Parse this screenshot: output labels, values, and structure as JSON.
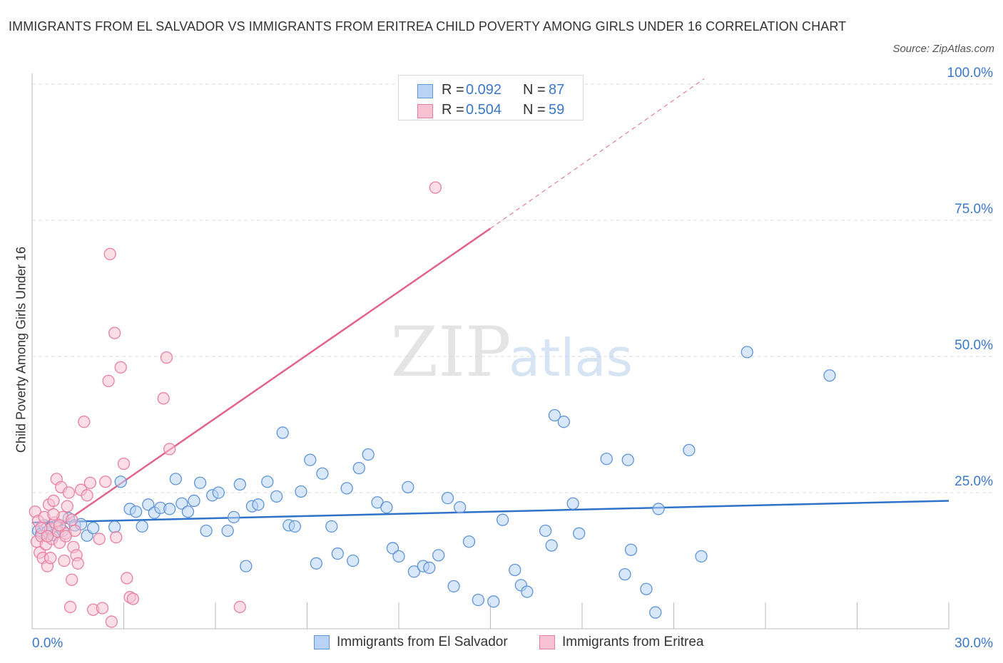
{
  "title": "IMMIGRANTS FROM EL SALVADOR VS IMMIGRANTS FROM ERITREA CHILD POVERTY AMONG GIRLS UNDER 16 CORRELATION CHART",
  "source": "Source: ZipAtlas.com",
  "watermark": {
    "zip": "ZIP",
    "atlas": "atlas"
  },
  "legend_top": {
    "rows": [
      {
        "r_label": "R =",
        "r_value": "0.092",
        "n_label": "N =",
        "n_value": "87"
      },
      {
        "r_label": "R =",
        "r_value": "0.504",
        "n_label": "N =",
        "n_value": "59"
      }
    ]
  },
  "legend_bottom": {
    "items": [
      {
        "label": "Immigrants from El Salvador"
      },
      {
        "label": "Immigrants from Eritrea"
      }
    ]
  },
  "colors": {
    "blue_fill": "#b8d3f5",
    "blue_stroke": "#5f95d6",
    "blue_line": "#2f73c9",
    "pink_fill": "#f8c2d2",
    "pink_stroke": "#e97fa0",
    "pink_line": "#e2648c",
    "axis_text": "#3a78c9",
    "grid": "#dddddd"
  },
  "chart_data": {
    "type": "scatter",
    "title": "IMMIGRANTS FROM EL SALVADOR VS IMMIGRANTS FROM ERITREA CHILD POVERTY AMONG GIRLS UNDER 16 CORRELATION CHART",
    "xlabel": "",
    "ylabel": "Child Poverty Among Girls Under 16",
    "xlim": [
      0,
      30
    ],
    "ylim": [
      0,
      100
    ],
    "x_tick_labels": [
      "0.0%",
      "30.0%"
    ],
    "y_tick_values": [
      25,
      50,
      75,
      100
    ],
    "y_tick_labels": [
      "25.0%",
      "50.0%",
      "75.0%",
      "100.0%"
    ],
    "grid": "horizontal dashed",
    "legend_position": "bottom",
    "series": [
      {
        "name": "Immigrants from El Salvador",
        "color": "#5f95d6",
        "points": [
          [
            0.2,
            18.0
          ],
          [
            0.3,
            17.5
          ],
          [
            0.4,
            19.0
          ],
          [
            0.5,
            17.8
          ],
          [
            0.6,
            18.5
          ],
          [
            0.7,
            17.2
          ],
          [
            0.8,
            18.8
          ],
          [
            1.0,
            18.0
          ],
          [
            1.2,
            20.3
          ],
          [
            1.4,
            19.0
          ],
          [
            1.6,
            19.2
          ],
          [
            1.8,
            17.1
          ],
          [
            2.0,
            18.5
          ],
          [
            2.7,
            18.7
          ],
          [
            2.9,
            27.0
          ],
          [
            3.2,
            22.0
          ],
          [
            3.4,
            21.5
          ],
          [
            3.6,
            18.8
          ],
          [
            3.8,
            22.8
          ],
          [
            4.0,
            21.3
          ],
          [
            4.2,
            22.2
          ],
          [
            4.5,
            22.0
          ],
          [
            4.7,
            27.5
          ],
          [
            4.9,
            23.0
          ],
          [
            5.1,
            21.5
          ],
          [
            5.3,
            23.5
          ],
          [
            5.5,
            26.8
          ],
          [
            5.7,
            18.0
          ],
          [
            5.9,
            24.5
          ],
          [
            6.1,
            25.0
          ],
          [
            6.4,
            18.0
          ],
          [
            6.6,
            20.5
          ],
          [
            6.8,
            26.5
          ],
          [
            7.0,
            11.5
          ],
          [
            7.2,
            22.5
          ],
          [
            7.4,
            22.8
          ],
          [
            7.7,
            27.0
          ],
          [
            8.0,
            24.3
          ],
          [
            8.2,
            36.0
          ],
          [
            8.4,
            19.0
          ],
          [
            8.6,
            18.8
          ],
          [
            8.8,
            25.2
          ],
          [
            9.1,
            31.0
          ],
          [
            9.3,
            12.0
          ],
          [
            9.5,
            28.5
          ],
          [
            9.8,
            18.8
          ],
          [
            10.0,
            13.8
          ],
          [
            10.3,
            25.8
          ],
          [
            10.5,
            12.5
          ],
          [
            10.7,
            29.5
          ],
          [
            11.0,
            32.0
          ],
          [
            11.3,
            23.2
          ],
          [
            11.6,
            22.3
          ],
          [
            11.8,
            14.8
          ],
          [
            12.0,
            13.3
          ],
          [
            12.3,
            26.0
          ],
          [
            12.5,
            10.5
          ],
          [
            12.8,
            11.5
          ],
          [
            13.0,
            11.2
          ],
          [
            13.3,
            13.5
          ],
          [
            13.6,
            24.0
          ],
          [
            13.8,
            7.8
          ],
          [
            14.0,
            22.3
          ],
          [
            14.3,
            16.0
          ],
          [
            14.6,
            5.3
          ],
          [
            15.1,
            5.0
          ],
          [
            15.4,
            20.0
          ],
          [
            15.8,
            10.8
          ],
          [
            16.0,
            8.0
          ],
          [
            16.2,
            6.8
          ],
          [
            16.8,
            18.0
          ],
          [
            17.0,
            15.3
          ],
          [
            17.1,
            39.2
          ],
          [
            17.4,
            38.0
          ],
          [
            17.7,
            23.0
          ],
          [
            17.9,
            17.5
          ],
          [
            18.8,
            31.2
          ],
          [
            19.4,
            10.0
          ],
          [
            19.5,
            31.0
          ],
          [
            19.6,
            14.5
          ],
          [
            20.1,
            7.3
          ],
          [
            20.4,
            3.0
          ],
          [
            20.5,
            22.0
          ],
          [
            21.5,
            32.8
          ],
          [
            21.9,
            13.3
          ],
          [
            23.4,
            50.8
          ],
          [
            26.1,
            46.5
          ]
        ]
      },
      {
        "name": "Immigrants from Eritrea",
        "color": "#e97fa0",
        "points": [
          [
            0.1,
            21.5
          ],
          [
            0.15,
            16.0
          ],
          [
            0.2,
            19.8
          ],
          [
            0.25,
            14.0
          ],
          [
            0.3,
            17.0
          ],
          [
            0.35,
            13.0
          ],
          [
            0.4,
            20.5
          ],
          [
            0.45,
            15.5
          ],
          [
            0.5,
            11.5
          ],
          [
            0.55,
            22.8
          ],
          [
            0.6,
            18.3
          ],
          [
            0.65,
            16.5
          ],
          [
            0.7,
            23.5
          ],
          [
            0.75,
            19.5
          ],
          [
            0.8,
            27.5
          ],
          [
            0.85,
            17.8
          ],
          [
            0.9,
            15.8
          ],
          [
            0.95,
            26.0
          ],
          [
            1.0,
            20.5
          ],
          [
            1.05,
            12.5
          ],
          [
            1.1,
            17.5
          ],
          [
            1.15,
            22.5
          ],
          [
            1.2,
            25.0
          ],
          [
            1.25,
            4.0
          ],
          [
            1.3,
            9.0
          ],
          [
            1.35,
            15.0
          ],
          [
            1.4,
            18.0
          ],
          [
            1.45,
            13.5
          ],
          [
            1.5,
            12.0
          ],
          [
            1.6,
            25.5
          ],
          [
            1.7,
            38.0
          ],
          [
            1.8,
            24.5
          ],
          [
            1.9,
            26.8
          ],
          [
            2.0,
            3.5
          ],
          [
            2.2,
            16.5
          ],
          [
            2.3,
            3.8
          ],
          [
            2.4,
            27.0
          ],
          [
            2.5,
            45.5
          ],
          [
            2.55,
            68.8
          ],
          [
            2.6,
            1.3
          ],
          [
            2.7,
            54.3
          ],
          [
            2.75,
            16.8
          ],
          [
            2.9,
            48.0
          ],
          [
            3.0,
            30.3
          ],
          [
            3.1,
            9.3
          ],
          [
            3.2,
            5.8
          ],
          [
            3.3,
            5.5
          ],
          [
            4.3,
            42.3
          ],
          [
            4.4,
            49.8
          ],
          [
            4.5,
            33.0
          ],
          [
            6.8,
            4.0
          ],
          [
            13.2,
            81.0
          ],
          [
            0.3,
            18.5
          ],
          [
            0.5,
            17.0
          ],
          [
            0.7,
            21.0
          ],
          [
            0.9,
            19.0
          ],
          [
            1.1,
            17.0
          ],
          [
            0.6,
            13.0
          ],
          [
            1.3,
            20.0
          ]
        ]
      }
    ],
    "trendlines": [
      {
        "series": "Immigrants from El Salvador",
        "from": [
          0,
          19.5
        ],
        "to": [
          30,
          23.5
        ],
        "style": "solid"
      },
      {
        "series": "Immigrants from Eritrea",
        "from": [
          0.4,
          17.0
        ],
        "to": [
          15.0,
          73.5
        ],
        "style": "solid"
      },
      {
        "series": "Immigrants from Eritrea",
        "from": [
          15.0,
          73.5
        ],
        "to": [
          22.0,
          101.0
        ],
        "style": "dashed"
      }
    ]
  }
}
